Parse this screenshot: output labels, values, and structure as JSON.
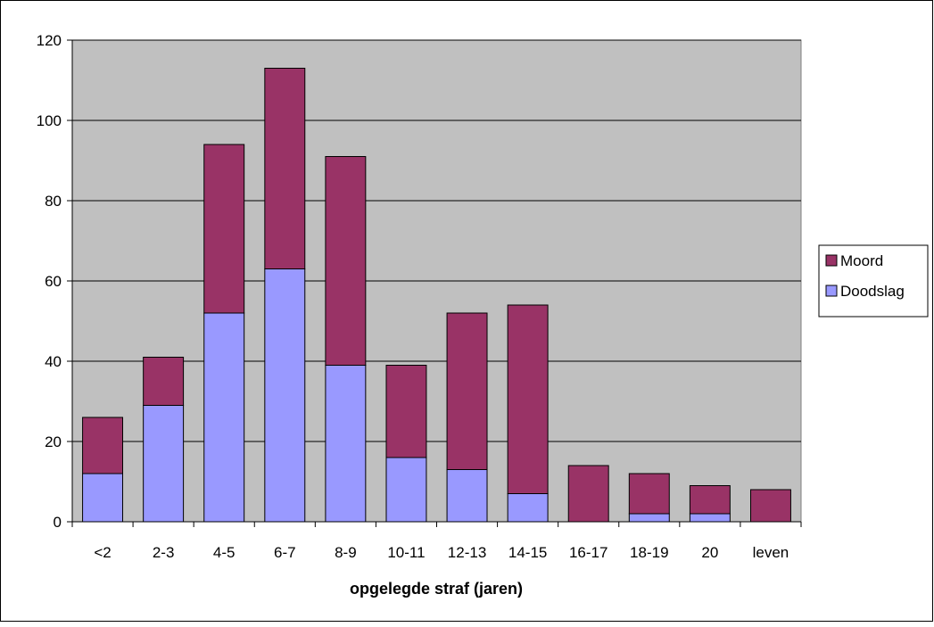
{
  "chart_data": {
    "type": "bar",
    "stacked": true,
    "title": "",
    "xlabel": "opgelegde straf (jaren)",
    "ylabel": "",
    "ylim": [
      0,
      120
    ],
    "yticks": [
      0,
      20,
      40,
      60,
      80,
      100,
      120
    ],
    "grid": true,
    "legend_position": "right",
    "categories": [
      "<2",
      "2-3",
      "4-5",
      "6-7",
      "8-9",
      "10-11",
      "12-13",
      "14-15",
      "16-17",
      "18-19",
      "20",
      "leven"
    ],
    "series": [
      {
        "name": "Doodslag",
        "color": "#9999ff",
        "values": [
          12,
          29,
          52,
          63,
          39,
          16,
          13,
          7,
          0,
          2,
          2,
          0
        ]
      },
      {
        "name": "Moord",
        "color": "#993366",
        "values": [
          14,
          12,
          42,
          50,
          52,
          23,
          39,
          47,
          14,
          10,
          7,
          8
        ]
      }
    ],
    "legend_order": [
      "Moord",
      "Doodslag"
    ],
    "plot_background": "#c0c0c0"
  }
}
